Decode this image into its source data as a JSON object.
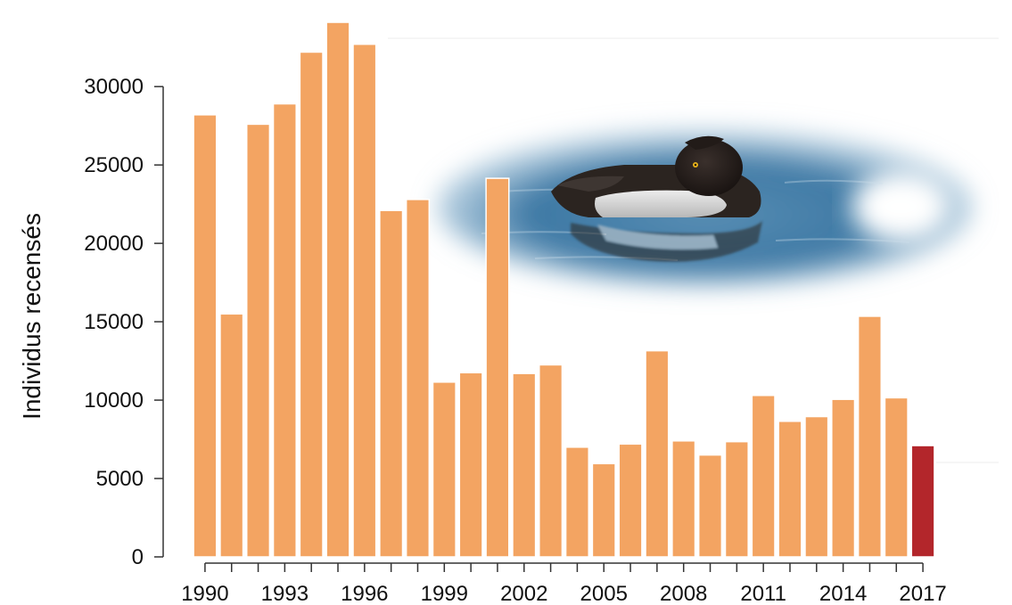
{
  "chart_data": {
    "type": "bar",
    "title": "",
    "xlabel": "",
    "ylabel": "Individus recensés",
    "ylim": [
      0,
      34500
    ],
    "yticks": [
      0,
      5000,
      10000,
      15000,
      20000,
      25000,
      30000
    ],
    "xtick_labels": [
      "1990",
      "1993",
      "1996",
      "1999",
      "2002",
      "2005",
      "2008",
      "2011",
      "2014",
      "2017"
    ],
    "categories": [
      "1990",
      "1991",
      "1992",
      "1993",
      "1994",
      "1995",
      "1996",
      "1997",
      "1998",
      "1999",
      "2000",
      "2001",
      "2002",
      "2003",
      "2004",
      "2005",
      "2006",
      "2007",
      "2008",
      "2009",
      "2010",
      "2011",
      "2012",
      "2013",
      "2014",
      "2015",
      "2016",
      "2017"
    ],
    "values": [
      28200,
      15500,
      27600,
      28900,
      32200,
      34100,
      32700,
      22100,
      22800,
      11150,
      11750,
      24150,
      11700,
      12250,
      7000,
      5950,
      7200,
      13150,
      7400,
      6500,
      7350,
      10300,
      8650,
      8950,
      10050,
      15350,
      10150,
      7100
    ],
    "highlight_index": 27,
    "grid": false,
    "legend": "none",
    "colors": {
      "bar": "#F3A462",
      "highlight": "#B3262B",
      "bar_edge": "#ffffff",
      "axis": "#333333"
    },
    "inset_image": "tufted-duck-photo"
  }
}
